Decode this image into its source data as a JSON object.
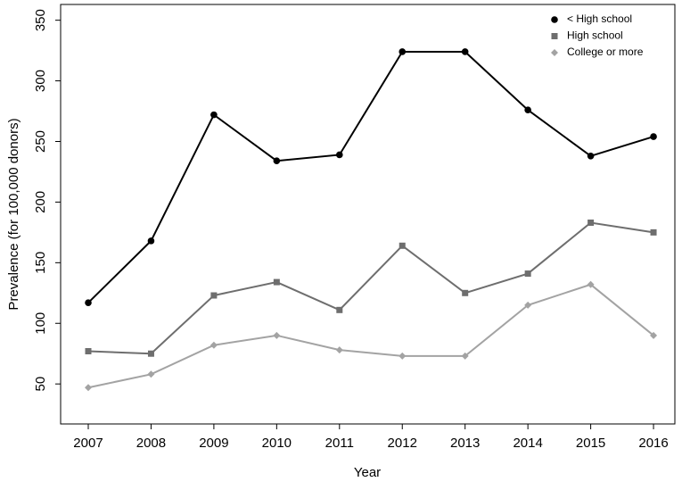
{
  "chart_data": {
    "type": "line",
    "x_label": "Year",
    "y_label": "Prevalence (for 100,000 donors)",
    "x": [
      2007,
      2008,
      2009,
      2010,
      2011,
      2012,
      2013,
      2014,
      2015,
      2016
    ],
    "series": [
      {
        "name": "< High school",
        "color": "#000000",
        "marker": "circle",
        "values": [
          117,
          168,
          272,
          234,
          239,
          324,
          324,
          276,
          238,
          254
        ]
      },
      {
        "name": "High school",
        "color": "#6e6e6e",
        "marker": "square",
        "values": [
          77,
          75,
          123,
          134,
          111,
          164,
          125,
          141,
          183,
          175
        ]
      },
      {
        "name": "College or more",
        "color": "#a3a3a3",
        "marker": "diamond",
        "values": [
          47,
          58,
          82,
          90,
          78,
          73,
          73,
          115,
          132,
          90
        ]
      }
    ],
    "xlim": [
      2006.56,
      2016.34
    ],
    "xticks": [
      2007,
      2008,
      2009,
      2010,
      2011,
      2012,
      2013,
      2014,
      2015,
      2016
    ],
    "ylim": [
      17,
      363
    ],
    "yticks": [
      50,
      100,
      150,
      200,
      250,
      300,
      350
    ],
    "legend": "top-right",
    "grid": false
  }
}
